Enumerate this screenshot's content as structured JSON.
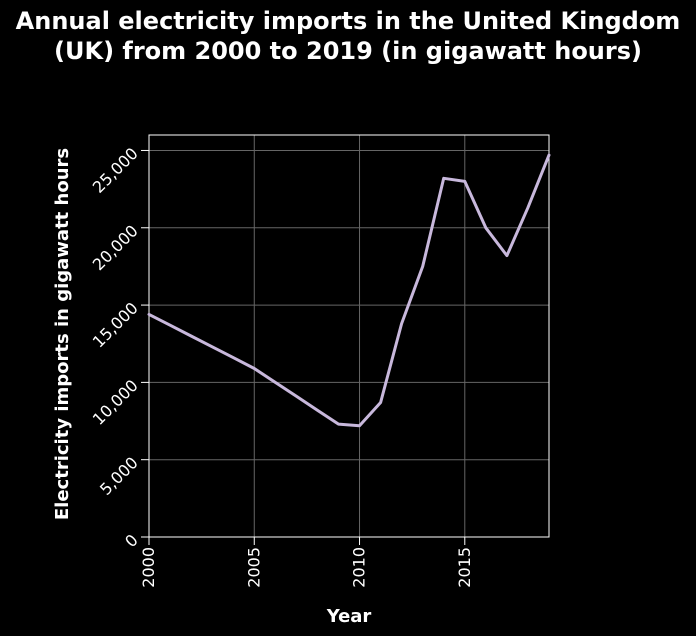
{
  "chart_data": {
    "type": "line",
    "title": "Annual electricity imports in the United Kingdom (UK) from 2000 to 2019 (in gigawatt hours)",
    "xlabel": "Year",
    "ylabel": "Electricity imports in gigawatt hours",
    "xlim": [
      2000,
      2019
    ],
    "ylim": [
      0,
      26000
    ],
    "x_ticks": [
      2000,
      2005,
      2010,
      2015
    ],
    "y_ticks": [
      0,
      5000,
      10000,
      15000,
      20000,
      25000
    ],
    "x_tick_labels": [
      "2000",
      "2005",
      "2010",
      "2015"
    ],
    "y_tick_labels": [
      "0",
      "5,000",
      "10,000",
      "15,000",
      "20,000",
      "25,000"
    ],
    "grid": true,
    "series": [
      {
        "color": "#c8b8dc",
        "x": [
          2000,
          2001,
          2002,
          2003,
          2004,
          2005,
          2006,
          2007,
          2008,
          2009,
          2010,
          2011,
          2012,
          2013,
          2014,
          2015,
          2016,
          2017,
          2018,
          2019
        ],
        "y": [
          14400,
          13700,
          13000,
          12300,
          11600,
          10900,
          10000,
          9100,
          8200,
          7300,
          7200,
          8700,
          13800,
          17500,
          23200,
          23000,
          20000,
          18200,
          21300,
          24700
        ]
      }
    ]
  }
}
